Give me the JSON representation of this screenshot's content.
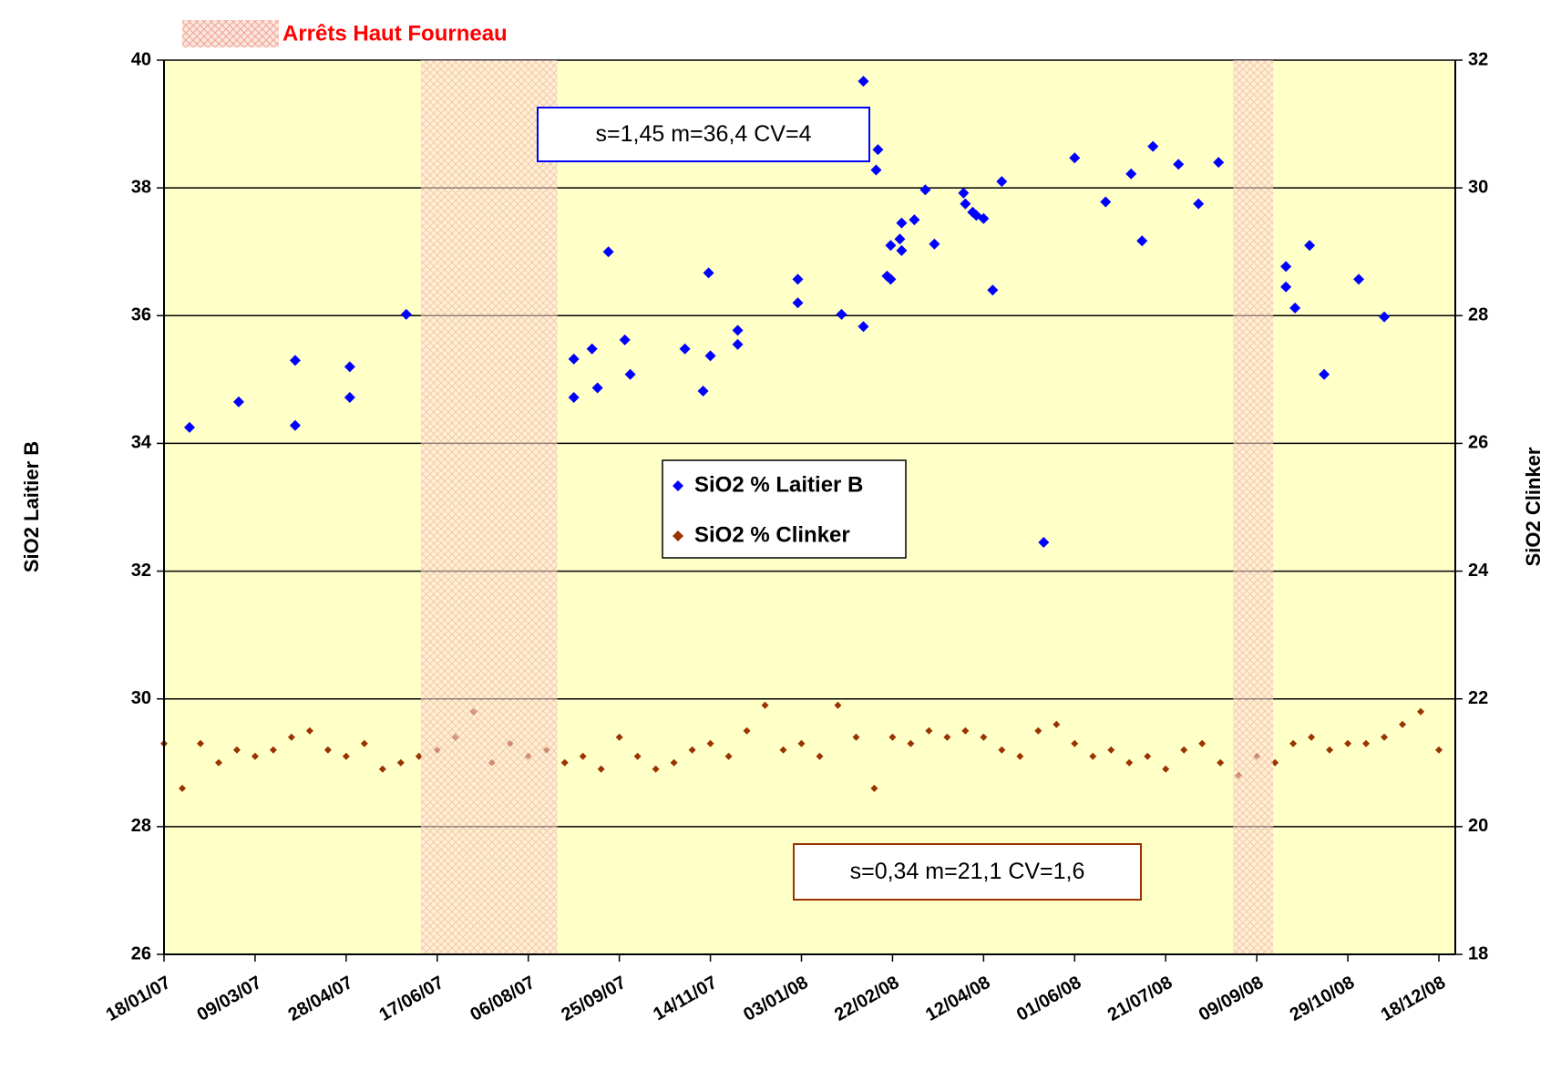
{
  "chart_data": {
    "type": "scatter",
    "legend_label": "Arrêts Haut Fourneau",
    "shutdowns": [
      [
        "2007-06-08",
        "2007-08-22"
      ],
      [
        "2008-08-27",
        "2008-09-18"
      ]
    ],
    "ylabel": "SiO2 Laitier B",
    "y2label": "SiO2 Clinker",
    "annotations": [
      "s=1,45  m=36,4  CV=4",
      "s=0,34 m=21,1  CV=1,6"
    ],
    "xlim": [
      "2007-01-18",
      "2008-12-27"
    ],
    "xticks": [
      {
        "value": "2007-01-18",
        "label": "18/01/07"
      },
      {
        "value": "2007-03-09",
        "label": "09/03/07"
      },
      {
        "value": "2007-04-28",
        "label": "28/04/07"
      },
      {
        "value": "2007-06-17",
        "label": "17/06/07"
      },
      {
        "value": "2007-08-06",
        "label": "06/08/07"
      },
      {
        "value": "2007-09-25",
        "label": "25/09/07"
      },
      {
        "value": "2007-11-14",
        "label": "14/11/07"
      },
      {
        "value": "2008-01-03",
        "label": "03/01/08"
      },
      {
        "value": "2008-02-22",
        "label": "22/02/08"
      },
      {
        "value": "2008-04-12",
        "label": "12/04/08"
      },
      {
        "value": "2008-06-01",
        "label": "01/06/08"
      },
      {
        "value": "2008-07-21",
        "label": "21/07/08"
      },
      {
        "value": "2008-09-09",
        "label": "09/09/08"
      },
      {
        "value": "2008-10-29",
        "label": "29/10/08"
      },
      {
        "value": "2008-12-18",
        "label": "18/12/08"
      }
    ],
    "ylim": [
      26,
      40
    ],
    "yticks": [
      26,
      28,
      30,
      32,
      34,
      36,
      38,
      40
    ],
    "y2lim": [
      18,
      32
    ],
    "y2ticks": [
      18,
      20,
      22,
      24,
      26,
      28,
      30,
      32
    ],
    "grid": true,
    "series": [
      {
        "name": "SiO2 % Laitier B",
        "color": "#0000ff",
        "x": [
          "2007-02-01",
          "2007-02-28",
          "2007-03-31",
          "2007-03-31",
          "2007-04-30",
          "2007-04-30",
          "2007-05-31",
          "2007-08-31",
          "2007-08-31",
          "2007-09-10",
          "2007-09-13",
          "2007-09-19",
          "2007-09-28",
          "2007-10-01",
          "2007-10-31",
          "2007-11-10",
          "2007-11-13",
          "2007-11-14",
          "2007-11-29",
          "2007-11-29",
          "2008-01-01",
          "2008-01-01",
          "2008-01-25",
          "2008-02-06",
          "2008-02-06",
          "2008-02-13",
          "2008-02-14",
          "2008-02-19",
          "2008-02-21",
          "2008-02-21",
          "2008-02-26",
          "2008-02-27",
          "2008-02-27",
          "2008-03-05",
          "2008-03-11",
          "2008-03-16",
          "2008-04-01",
          "2008-04-02",
          "2008-04-06",
          "2008-04-08",
          "2008-04-12",
          "2008-04-17",
          "2008-04-22",
          "2008-05-15",
          "2008-06-01",
          "2008-06-18",
          "2008-07-02",
          "2008-07-08",
          "2008-07-14",
          "2008-07-28",
          "2008-08-08",
          "2008-08-19",
          "2008-09-25",
          "2008-09-25",
          "2008-09-30",
          "2008-10-08",
          "2008-10-16",
          "2008-11-04",
          "2008-11-18"
        ],
        "values": [
          34.25,
          34.65,
          35.3,
          34.28,
          35.2,
          34.72,
          36.02,
          34.72,
          35.32,
          35.48,
          34.87,
          37.0,
          35.62,
          35.08,
          35.48,
          34.82,
          36.67,
          35.37,
          35.55,
          35.77,
          36.2,
          36.57,
          36.02,
          35.83,
          39.67,
          38.28,
          38.6,
          36.62,
          37.1,
          36.57,
          37.2,
          37.02,
          37.45,
          37.5,
          37.97,
          37.12,
          37.92,
          37.75,
          37.62,
          37.57,
          37.52,
          36.4,
          38.1,
          32.45,
          38.47,
          37.78,
          38.22,
          37.17,
          38.65,
          38.37,
          37.75,
          38.4,
          36.77,
          36.45,
          36.12,
          37.1,
          35.08,
          36.57,
          35.98
        ]
      },
      {
        "name": "SiO2 % Clinker",
        "color": "#993300",
        "axis": "y2",
        "x": [
          "2007-01-18",
          "2007-01-28",
          "2007-02-07",
          "2007-02-17",
          "2007-02-27",
          "2007-03-09",
          "2007-03-19",
          "2007-03-29",
          "2007-04-08",
          "2007-04-18",
          "2007-04-28",
          "2007-05-08",
          "2007-05-18",
          "2007-05-28",
          "2007-06-07",
          "2007-06-17",
          "2007-06-27",
          "2007-07-07",
          "2007-07-17",
          "2007-07-27",
          "2007-08-06",
          "2007-08-16",
          "2007-08-26",
          "2007-09-05",
          "2007-09-15",
          "2007-09-25",
          "2007-10-05",
          "2007-10-15",
          "2007-10-25",
          "2007-11-04",
          "2007-11-14",
          "2007-11-24",
          "2007-12-04",
          "2007-12-14",
          "2007-12-24",
          "2008-01-03",
          "2008-01-13",
          "2008-01-23",
          "2008-02-02",
          "2008-02-12",
          "2008-02-22",
          "2008-03-03",
          "2008-03-13",
          "2008-03-23",
          "2008-04-02",
          "2008-04-12",
          "2008-04-22",
          "2008-05-02",
          "2008-05-12",
          "2008-05-22",
          "2008-06-01",
          "2008-06-11",
          "2008-06-21",
          "2008-07-01",
          "2008-07-11",
          "2008-07-21",
          "2008-07-31",
          "2008-08-10",
          "2008-08-20",
          "2008-08-30",
          "2008-09-09",
          "2008-09-19",
          "2008-09-29",
          "2008-10-09",
          "2008-10-19",
          "2008-10-29",
          "2008-11-08",
          "2008-11-18",
          "2008-11-28",
          "2008-12-08",
          "2008-12-18"
        ],
        "values": [
          21.3,
          20.6,
          21.3,
          21.0,
          21.2,
          21.1,
          21.2,
          21.4,
          21.5,
          21.2,
          21.1,
          21.3,
          20.9,
          21.0,
          21.1,
          21.2,
          21.4,
          21.8,
          21.0,
          21.3,
          21.1,
          21.2,
          21.0,
          21.1,
          20.9,
          21.4,
          21.1,
          20.9,
          21.0,
          21.2,
          21.3,
          21.1,
          21.5,
          21.9,
          21.2,
          21.3,
          21.1,
          21.9,
          21.4,
          20.6,
          21.4,
          21.3,
          21.5,
          21.4,
          21.5,
          21.4,
          21.2,
          21.1,
          21.5,
          21.6,
          21.3,
          21.1,
          21.2,
          21.0,
          21.1,
          20.9,
          21.2,
          21.3,
          21.0,
          20.8,
          21.1,
          21.0,
          21.3,
          21.4,
          21.2,
          21.3,
          21.3,
          21.4,
          21.6,
          21.8,
          21.2
        ]
      }
    ]
  }
}
